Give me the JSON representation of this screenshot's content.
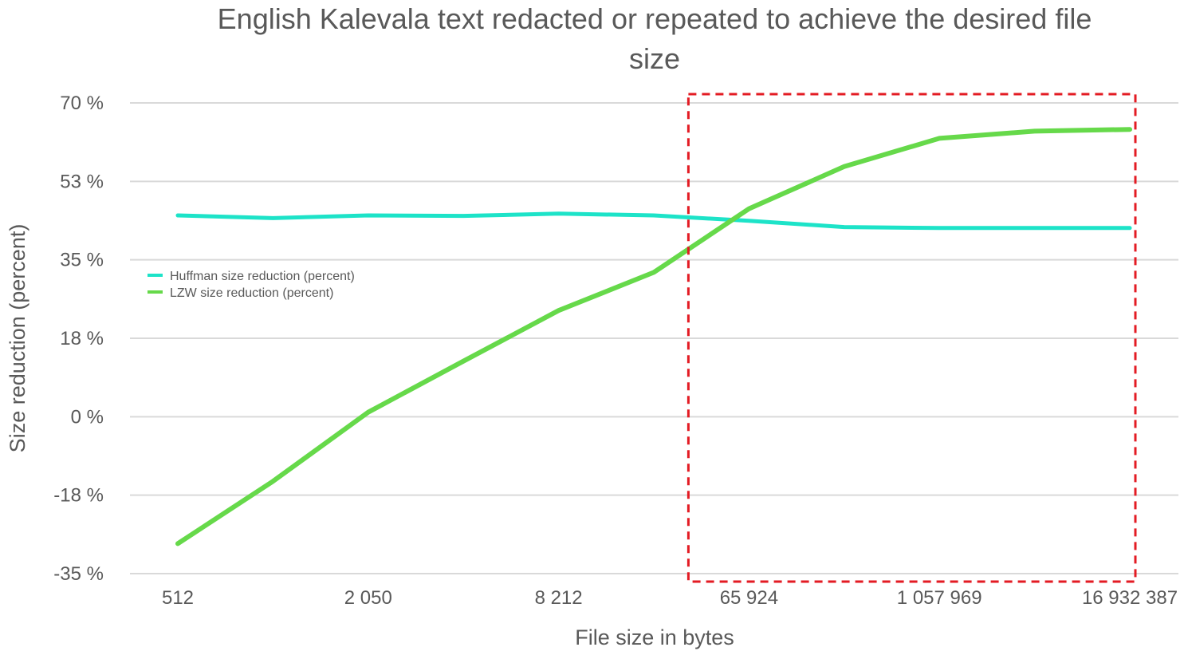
{
  "chart_data": {
    "type": "line",
    "title": "English Kalevala text redacted or repeated to achieve the desired file size",
    "title_lines": [
      "English Kalevala text redacted or repeated to achieve the desired file",
      "size"
    ],
    "xlabel": "File size in bytes",
    "ylabel": "Size reduction (percent)",
    "categories": [
      "512",
      "",
      "2 050",
      "",
      "8 212",
      "",
      "65 924",
      "",
      "1 057 969",
      "",
      "16 932 387"
    ],
    "y_ticks": [
      "70 %",
      "53 %",
      "35 %",
      "18 %",
      "0 %",
      "-18 %",
      "-35 %"
    ],
    "ylim": [
      -35,
      70
    ],
    "grid": true,
    "legend_position": "left",
    "series": [
      {
        "name": "Huffman size reduction (percent)",
        "color": "#1de3c8",
        "values": [
          44.9,
          44.3,
          44.9,
          44.8,
          45.3,
          44.9,
          43.7,
          42.3,
          42.1,
          42.1,
          42.1
        ]
      },
      {
        "name": "LZW size reduction (percent)",
        "color": "#66d94a",
        "values": [
          -28.3,
          -14.4,
          1.0,
          12.4,
          23.7,
          32.2,
          46.4,
          55.8,
          62.1,
          63.7,
          64.1
        ]
      }
    ],
    "annotation": {
      "type": "dashed-rectangle",
      "color": "#e31b23",
      "x_range": [
        "65 924",
        "16 932 387"
      ]
    }
  }
}
